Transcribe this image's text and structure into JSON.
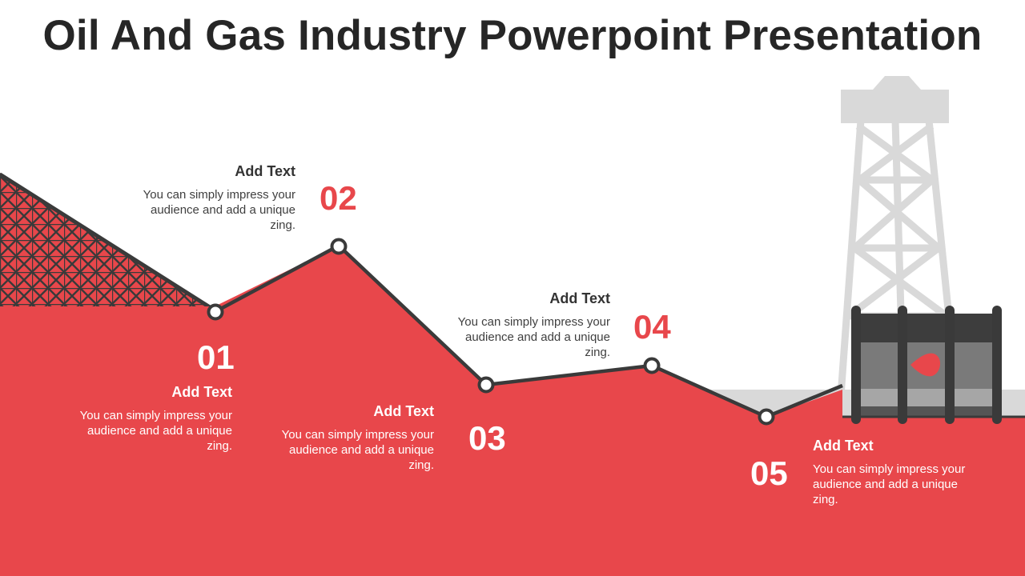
{
  "title": "Oil And Gas Industry Powerpoint Presentation",
  "colors": {
    "accent": "#e8474b",
    "dark": "#3a3a3a",
    "tower": "#d9d9d9"
  },
  "steps": [
    {
      "number": "01",
      "heading": "Add Text",
      "body": "You can simply impress your audience and add a unique zing."
    },
    {
      "number": "02",
      "heading": "Add Text",
      "body": "You can simply impress your audience and add a unique zing."
    },
    {
      "number": "03",
      "heading": "Add Text",
      "body": "You can simply impress your audience and add a unique zing."
    },
    {
      "number": "04",
      "heading": "Add Text",
      "body": "You can simply impress your audience and add a unique zing."
    },
    {
      "number": "05",
      "heading": "Add Text",
      "body": "You can simply impress your audience and add a unique zing."
    }
  ]
}
